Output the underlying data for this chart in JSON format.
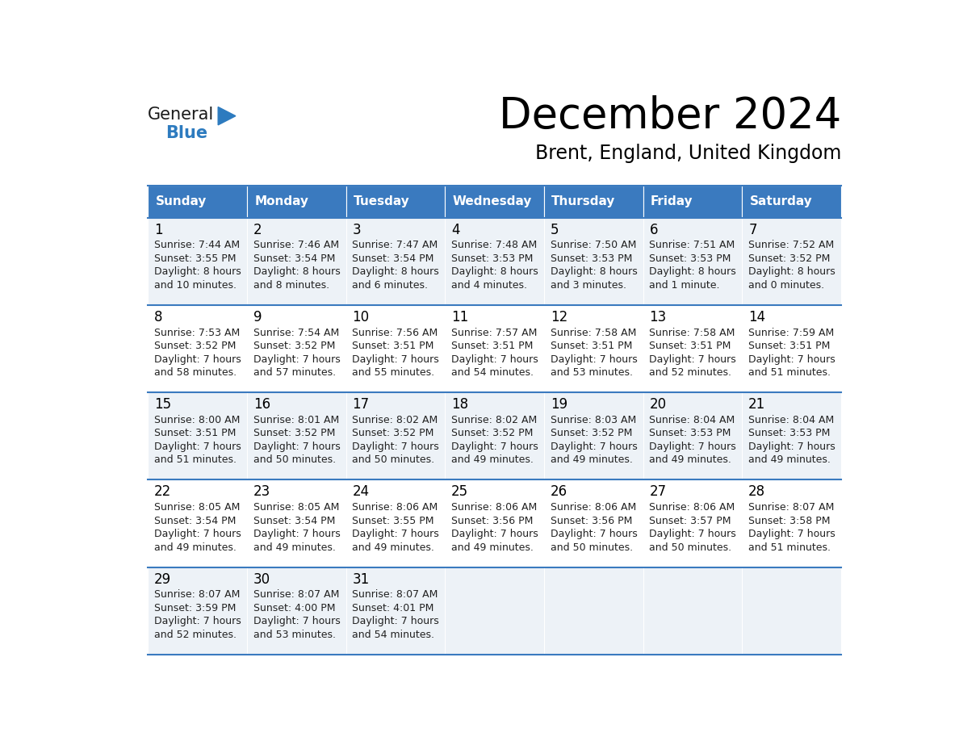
{
  "title": "December 2024",
  "subtitle": "Brent, England, United Kingdom",
  "header_color": "#3a7abf",
  "header_text_color": "#ffffff",
  "row_bg_even": "#edf2f7",
  "row_bg_odd": "#ffffff",
  "text_color": "#222222",
  "days_of_week": [
    "Sunday",
    "Monday",
    "Tuesday",
    "Wednesday",
    "Thursday",
    "Friday",
    "Saturday"
  ],
  "weeks": [
    [
      {
        "day": "1",
        "sunrise": "7:44 AM",
        "sunset": "3:55 PM",
        "daylight": "8 hours",
        "daylight2": "and 10 minutes."
      },
      {
        "day": "2",
        "sunrise": "7:46 AM",
        "sunset": "3:54 PM",
        "daylight": "8 hours",
        "daylight2": "and 8 minutes."
      },
      {
        "day": "3",
        "sunrise": "7:47 AM",
        "sunset": "3:54 PM",
        "daylight": "8 hours",
        "daylight2": "and 6 minutes."
      },
      {
        "day": "4",
        "sunrise": "7:48 AM",
        "sunset": "3:53 PM",
        "daylight": "8 hours",
        "daylight2": "and 4 minutes."
      },
      {
        "day": "5",
        "sunrise": "7:50 AM",
        "sunset": "3:53 PM",
        "daylight": "8 hours",
        "daylight2": "and 3 minutes."
      },
      {
        "day": "6",
        "sunrise": "7:51 AM",
        "sunset": "3:53 PM",
        "daylight": "8 hours",
        "daylight2": "and 1 minute."
      },
      {
        "day": "7",
        "sunrise": "7:52 AM",
        "sunset": "3:52 PM",
        "daylight": "8 hours",
        "daylight2": "and 0 minutes."
      }
    ],
    [
      {
        "day": "8",
        "sunrise": "7:53 AM",
        "sunset": "3:52 PM",
        "daylight": "7 hours",
        "daylight2": "and 58 minutes."
      },
      {
        "day": "9",
        "sunrise": "7:54 AM",
        "sunset": "3:52 PM",
        "daylight": "7 hours",
        "daylight2": "and 57 minutes."
      },
      {
        "day": "10",
        "sunrise": "7:56 AM",
        "sunset": "3:51 PM",
        "daylight": "7 hours",
        "daylight2": "and 55 minutes."
      },
      {
        "day": "11",
        "sunrise": "7:57 AM",
        "sunset": "3:51 PM",
        "daylight": "7 hours",
        "daylight2": "and 54 minutes."
      },
      {
        "day": "12",
        "sunrise": "7:58 AM",
        "sunset": "3:51 PM",
        "daylight": "7 hours",
        "daylight2": "and 53 minutes."
      },
      {
        "day": "13",
        "sunrise": "7:58 AM",
        "sunset": "3:51 PM",
        "daylight": "7 hours",
        "daylight2": "and 52 minutes."
      },
      {
        "day": "14",
        "sunrise": "7:59 AM",
        "sunset": "3:51 PM",
        "daylight": "7 hours",
        "daylight2": "and 51 minutes."
      }
    ],
    [
      {
        "day": "15",
        "sunrise": "8:00 AM",
        "sunset": "3:51 PM",
        "daylight": "7 hours",
        "daylight2": "and 51 minutes."
      },
      {
        "day": "16",
        "sunrise": "8:01 AM",
        "sunset": "3:52 PM",
        "daylight": "7 hours",
        "daylight2": "and 50 minutes."
      },
      {
        "day": "17",
        "sunrise": "8:02 AM",
        "sunset": "3:52 PM",
        "daylight": "7 hours",
        "daylight2": "and 50 minutes."
      },
      {
        "day": "18",
        "sunrise": "8:02 AM",
        "sunset": "3:52 PM",
        "daylight": "7 hours",
        "daylight2": "and 49 minutes."
      },
      {
        "day": "19",
        "sunrise": "8:03 AM",
        "sunset": "3:52 PM",
        "daylight": "7 hours",
        "daylight2": "and 49 minutes."
      },
      {
        "day": "20",
        "sunrise": "8:04 AM",
        "sunset": "3:53 PM",
        "daylight": "7 hours",
        "daylight2": "and 49 minutes."
      },
      {
        "day": "21",
        "sunrise": "8:04 AM",
        "sunset": "3:53 PM",
        "daylight": "7 hours",
        "daylight2": "and 49 minutes."
      }
    ],
    [
      {
        "day": "22",
        "sunrise": "8:05 AM",
        "sunset": "3:54 PM",
        "daylight": "7 hours",
        "daylight2": "and 49 minutes."
      },
      {
        "day": "23",
        "sunrise": "8:05 AM",
        "sunset": "3:54 PM",
        "daylight": "7 hours",
        "daylight2": "and 49 minutes."
      },
      {
        "day": "24",
        "sunrise": "8:06 AM",
        "sunset": "3:55 PM",
        "daylight": "7 hours",
        "daylight2": "and 49 minutes."
      },
      {
        "day": "25",
        "sunrise": "8:06 AM",
        "sunset": "3:56 PM",
        "daylight": "7 hours",
        "daylight2": "and 49 minutes."
      },
      {
        "day": "26",
        "sunrise": "8:06 AM",
        "sunset": "3:56 PM",
        "daylight": "7 hours",
        "daylight2": "and 50 minutes."
      },
      {
        "day": "27",
        "sunrise": "8:06 AM",
        "sunset": "3:57 PM",
        "daylight": "7 hours",
        "daylight2": "and 50 minutes."
      },
      {
        "day": "28",
        "sunrise": "8:07 AM",
        "sunset": "3:58 PM",
        "daylight": "7 hours",
        "daylight2": "and 51 minutes."
      }
    ],
    [
      {
        "day": "29",
        "sunrise": "8:07 AM",
        "sunset": "3:59 PM",
        "daylight": "7 hours",
        "daylight2": "and 52 minutes."
      },
      {
        "day": "30",
        "sunrise": "8:07 AM",
        "sunset": "4:00 PM",
        "daylight": "7 hours",
        "daylight2": "and 53 minutes."
      },
      {
        "day": "31",
        "sunrise": "8:07 AM",
        "sunset": "4:01 PM",
        "daylight": "7 hours",
        "daylight2": "and 54 minutes."
      },
      null,
      null,
      null,
      null
    ]
  ],
  "logo_general_color": "#1a1a1a",
  "logo_blue_color": "#2d7bbf",
  "logo_triangle_color": "#2d7bbf"
}
